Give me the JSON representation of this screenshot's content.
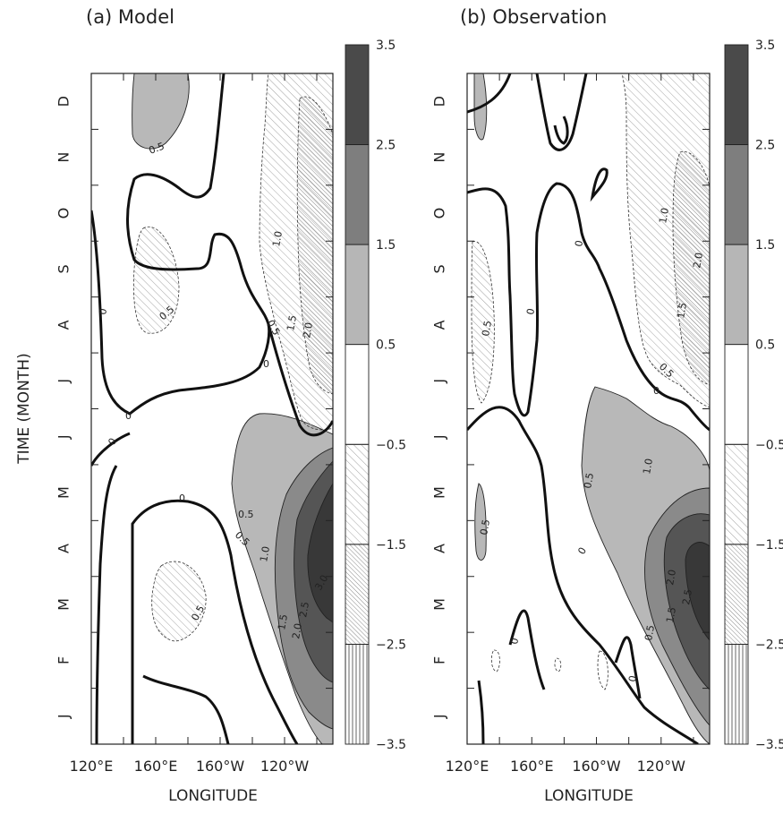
{
  "chart_data": [
    {
      "type": "heatmap",
      "title": "(a) Model",
      "xlabel": "LONGITUDE",
      "ylabel": "TIME (MONTH)",
      "xlim": [
        120,
        270
      ],
      "x_ticks": [
        "120°E",
        "160°E",
        "160°W",
        "120°W"
      ],
      "y_ticks": [
        "J",
        "F",
        "M",
        "A",
        "M",
        "J",
        "J",
        "A",
        "S",
        "O",
        "N",
        "D"
      ],
      "contour_levels": [
        -3.5,
        -2.5,
        -1.5,
        -0.5,
        0,
        0.5,
        1.5,
        2.5,
        3.5
      ],
      "contour_labels": [
        "0",
        "0",
        "0",
        "0",
        "0",
        "0.5",
        "0.5",
        "0.5",
        "0.5",
        "0.5",
        "0.5",
        "1.0",
        "1.5",
        "2.0",
        "2.5",
        "3.0",
        "1.0",
        "1.5",
        "2.0"
      ],
      "features": [
        {
          "kind": "warm",
          "lon": 258,
          "month": 3.5,
          "max": 3.0
        },
        {
          "kind": "warm",
          "lon": 132,
          "month": 11.5,
          "max": 0.5
        },
        {
          "kind": "cold",
          "lon": 252,
          "month": 8.5,
          "min": -2.0
        },
        {
          "kind": "cold",
          "lon": 148,
          "month": 8.0,
          "min": -0.5
        },
        {
          "kind": "cold",
          "lon": 158,
          "month": 2.5,
          "min": -0.5
        }
      ]
    },
    {
      "type": "heatmap",
      "title": "(b) Observation",
      "xlabel": "LONGITUDE",
      "xlim": [
        120,
        270
      ],
      "x_ticks": [
        "120°E",
        "160°E",
        "160°W",
        "120°W"
      ],
      "y_ticks": [
        "J",
        "F",
        "M",
        "A",
        "M",
        "J",
        "J",
        "A",
        "S",
        "O",
        "N",
        "D"
      ],
      "contour_levels": [
        -3.5,
        -2.5,
        -1.5,
        -0.5,
        0,
        0.5,
        1.5,
        2.5,
        3.5
      ],
      "contour_labels": [
        "0",
        "0",
        "0",
        "0",
        "0",
        "0",
        "0.5",
        "0.5",
        "0.5",
        "0.5",
        "0.5",
        "1.0",
        "1.5",
        "2.0",
        "2.5",
        "1.0",
        "1.5",
        "2.0"
      ],
      "features": [
        {
          "kind": "warm",
          "lon": 258,
          "month": 3.0,
          "max": 2.5
        },
        {
          "kind": "cold",
          "lon": 250,
          "month": 9.5,
          "min": -2.0
        },
        {
          "kind": "cold",
          "lon": 128,
          "month": 8.5,
          "min": -0.5
        }
      ]
    }
  ],
  "colorbar": {
    "labels": [
      "3.5",
      "2.5",
      "1.5",
      "0.5",
      "−0.5",
      "−1.5",
      "−2.5",
      "−3.5"
    ],
    "fills": [
      "#4a4a4a",
      "#7e7e7e",
      "#b6b6b6",
      "#ffffff",
      "hatch-light",
      "hatch-dense",
      "vertical-lines"
    ]
  },
  "colors": {
    "level_0.5_1.5": "#b8b8b8",
    "level_1.5_2.5": "#8a8a8a",
    "level_2.5_3.5": "#555555",
    "level_3.5_plus": "#383838",
    "hatch": "#9a9a9a"
  }
}
